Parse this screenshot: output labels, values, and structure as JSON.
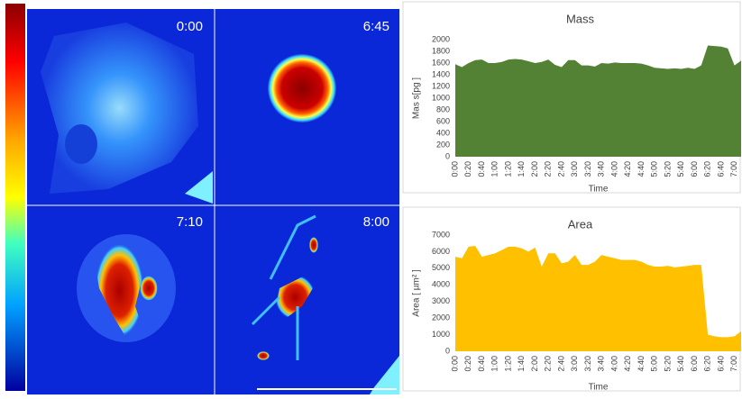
{
  "panels": [
    "0:00",
    "6:45",
    "7:10",
    "8:00"
  ],
  "chart_data": [
    {
      "type": "area",
      "title": "Mass",
      "y_label": "Mas s[pg ]",
      "x_label": "Time",
      "color": "#548235",
      "categories": [
        "0:00",
        null,
        "0:20",
        null,
        "0:40",
        null,
        "1:00",
        null,
        "1:20",
        null,
        "1:40",
        null,
        "2:00",
        null,
        "2:20",
        null,
        "2:40",
        null,
        "3:00",
        null,
        "3:20",
        null,
        "3:40",
        null,
        "4:00",
        null,
        "4:20",
        null,
        "4:40",
        null,
        "5:00",
        null,
        "5:20",
        null,
        "5:40",
        null,
        "6:00",
        null,
        "6:20",
        null,
        "6:40",
        null,
        "7:00",
        null
      ],
      "values": [
        1580,
        1530,
        1600,
        1650,
        1660,
        1600,
        1600,
        1620,
        1660,
        1670,
        1660,
        1630,
        1600,
        1620,
        1660,
        1570,
        1530,
        1650,
        1650,
        1560,
        1560,
        1540,
        1600,
        1590,
        1610,
        1600,
        1600,
        1600,
        1590,
        1560,
        1520,
        1510,
        1500,
        1510,
        1500,
        1520,
        1500,
        1560,
        1900,
        1890,
        1880,
        1850,
        1560,
        1640
      ],
      "ylim": [
        0,
        2000
      ],
      "yticks": [
        0,
        200,
        400,
        600,
        800,
        1000,
        1200,
        1400,
        1600,
        1800,
        2000
      ],
      "grid": false
    },
    {
      "type": "area",
      "title": "Area",
      "y_label": "Area [ µm² ]",
      "x_label": "Time",
      "color": "#ffc000",
      "categories": [
        "0:00",
        null,
        "0:20",
        null,
        "0:40",
        null,
        "1:00",
        null,
        "1:20",
        null,
        "1:40",
        null,
        "2:00",
        null,
        "2:20",
        null,
        "2:40",
        null,
        "3:00",
        null,
        "3:20",
        null,
        "3:40",
        null,
        "4:00",
        null,
        "4:20",
        null,
        "4:40",
        null,
        "5:00",
        null,
        "5:20",
        null,
        "5:40",
        null,
        "6:00",
        null,
        "6:20",
        null,
        "6:40",
        null,
        "7:00",
        null
      ],
      "values": [
        5700,
        5600,
        6300,
        6350,
        5700,
        5800,
        5900,
        6100,
        6300,
        6300,
        6200,
        6000,
        6250,
        5100,
        5900,
        5900,
        5300,
        5400,
        5800,
        5200,
        5200,
        5400,
        5800,
        5700,
        5600,
        5500,
        5500,
        5500,
        5400,
        5200,
        5100,
        5100,
        5150,
        5050,
        5100,
        5150,
        5200,
        5200,
        1000,
        900,
        850,
        850,
        900,
        1200
      ],
      "ylim": [
        0,
        7000
      ],
      "yticks": [
        0,
        1000,
        2000,
        3000,
        4000,
        5000,
        6000,
        7000
      ],
      "grid": false
    }
  ]
}
